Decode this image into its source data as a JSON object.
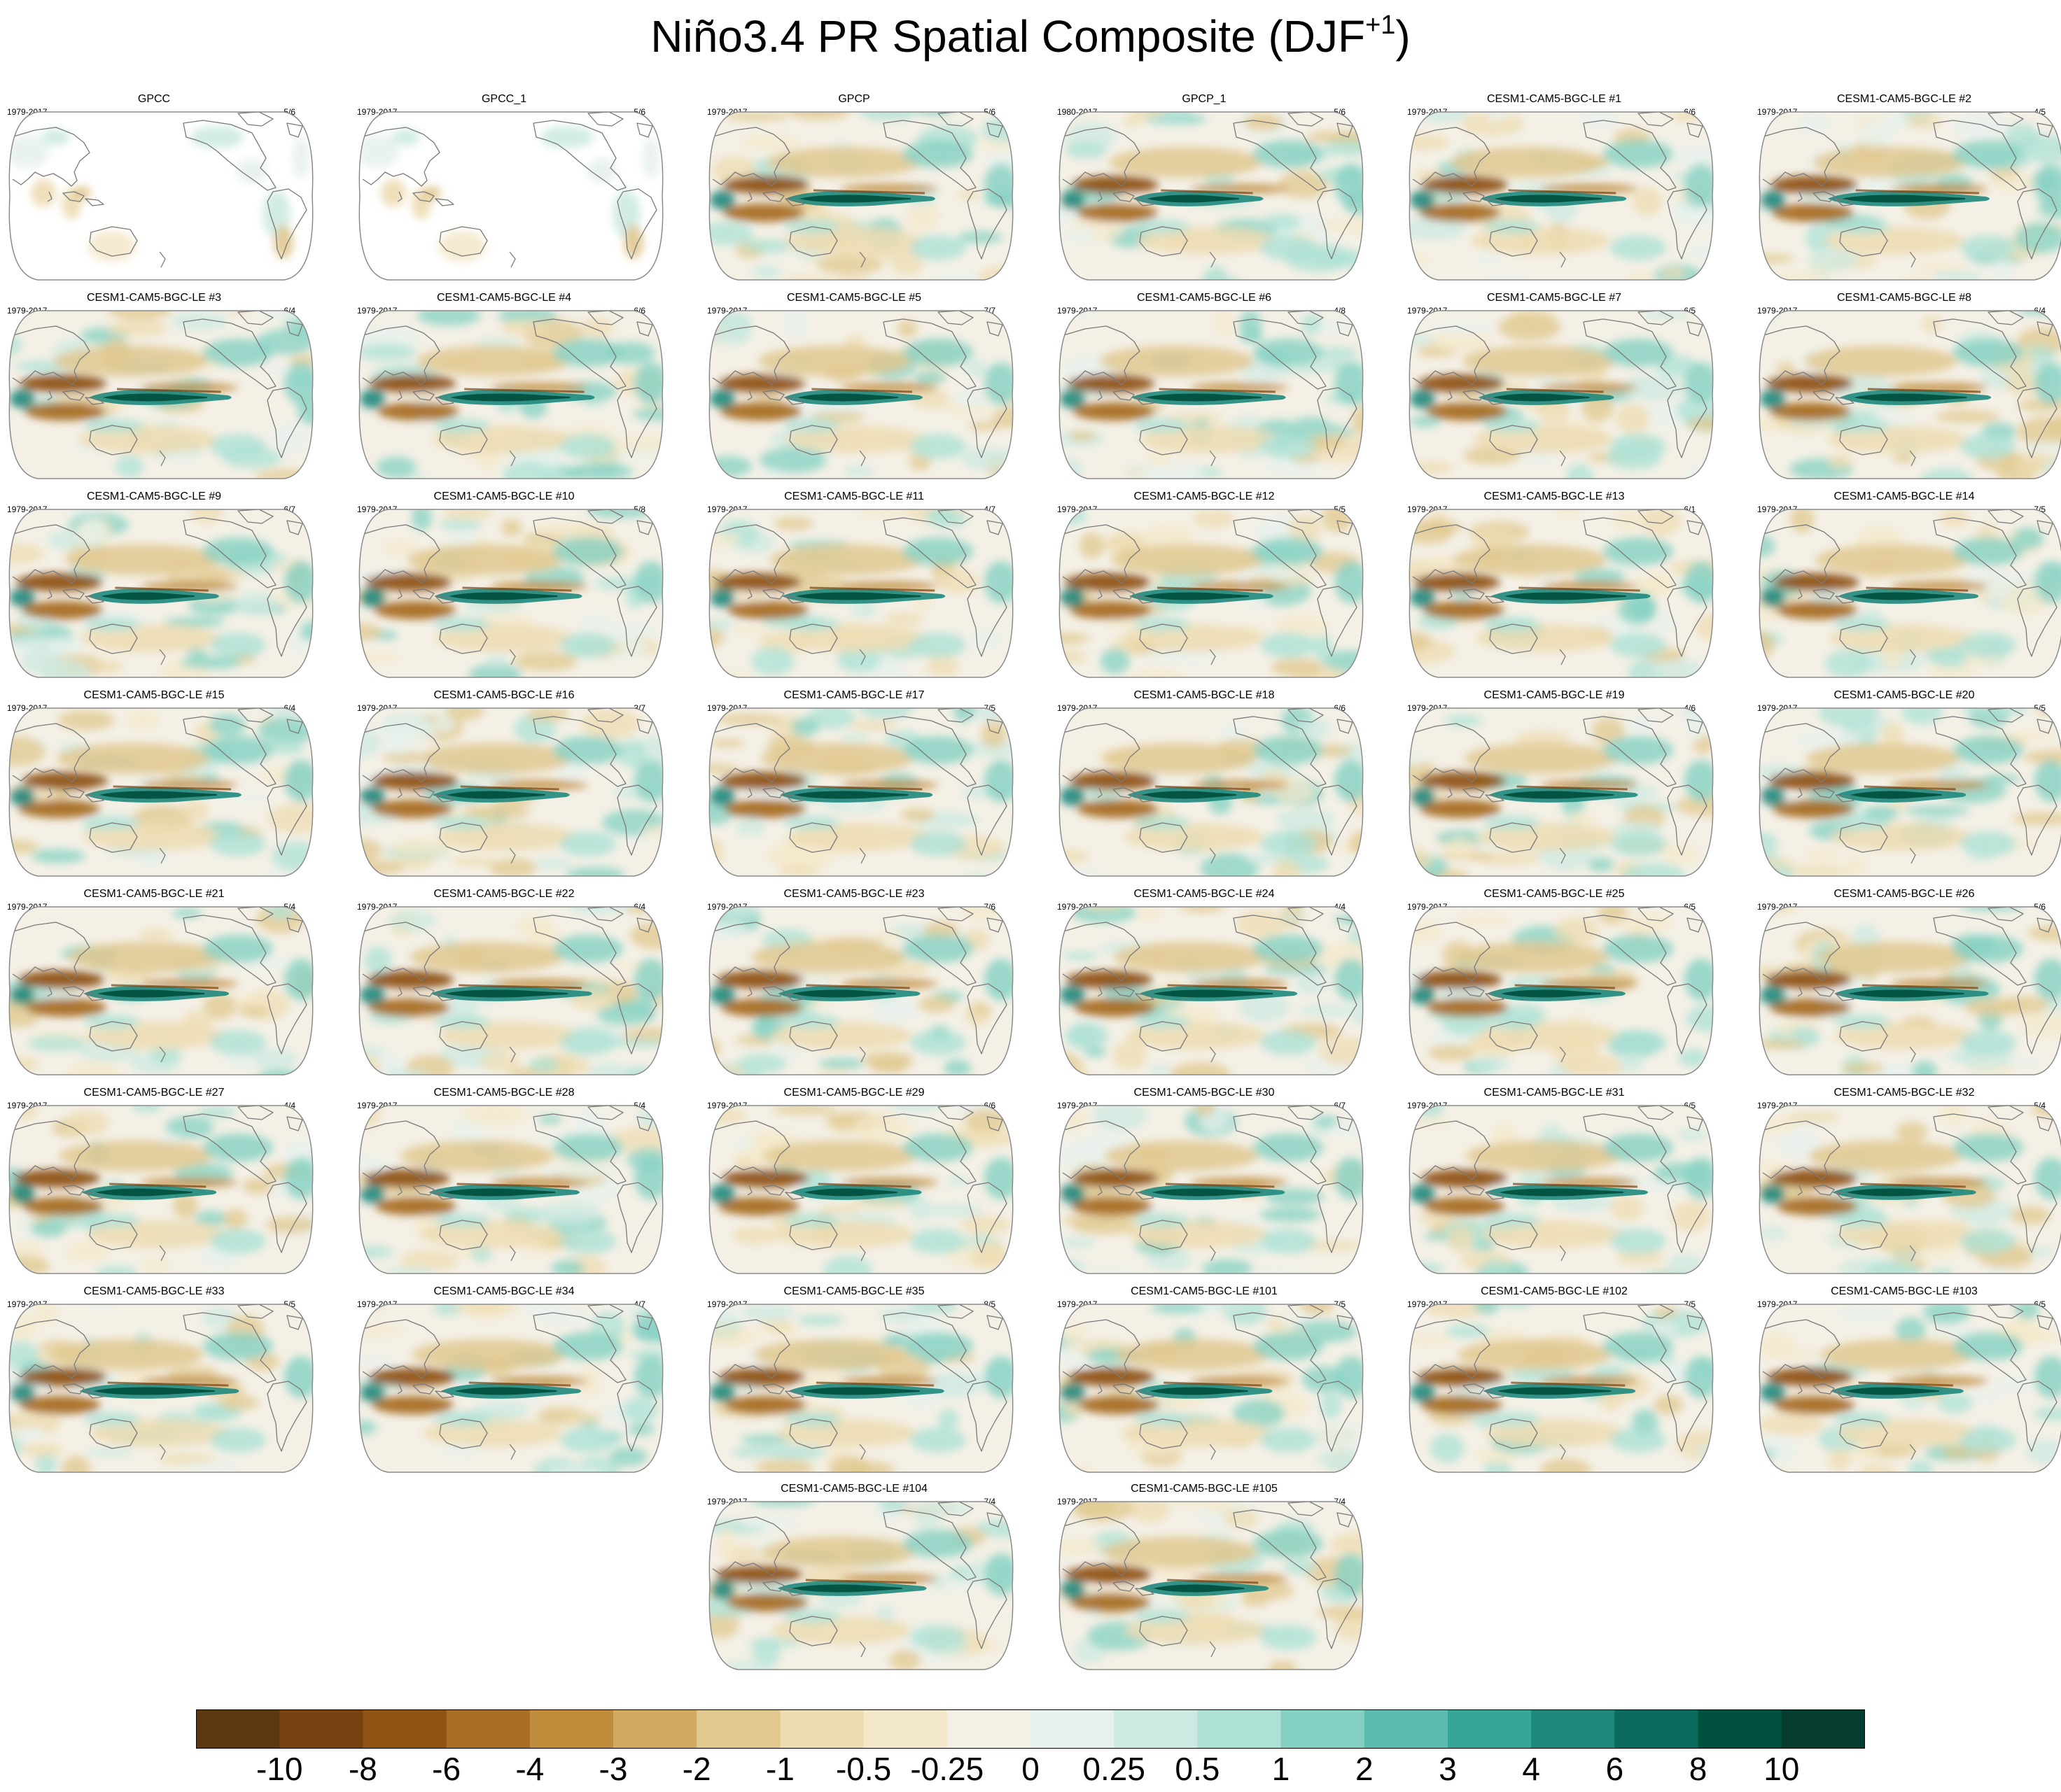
{
  "title": {
    "main": "Niño3.4 PR Spatial Composite (DJF",
    "superscript": "+1",
    "close": ")"
  },
  "colors": {
    "palette": [
      "#5c3710",
      "#784210",
      "#8f5313",
      "#a86e23",
      "#bf8c3c",
      "#d2aa62",
      "#e0c88f",
      "#eddcb2",
      "#f4e8cb",
      "#f4f0e6",
      "#e7f1ed",
      "#cdeae2",
      "#ade1d6",
      "#84d1c3",
      "#5cbcad",
      "#35a597",
      "#1f887d",
      "#0b6a5e",
      "#02513f",
      "#043d2f"
    ],
    "land_outline": "#7a7a7a",
    "map_border": "#8a8a8a"
  },
  "chart_data": {
    "type": "heatmap",
    "title": "Niño3.4 PR Spatial Composite (DJF+1)",
    "projection": "Robinson (Pacific-centered)",
    "season": "DJF+1",
    "colorbar": {
      "levels": [
        "-10",
        "-8",
        "-6",
        "-4",
        "-3",
        "-2",
        "-1",
        "-0.5",
        "-0.25",
        "0",
        "0.25",
        "0.5",
        "1",
        "2",
        "3",
        "4",
        "6",
        "8",
        "10"
      ]
    },
    "panels": [
      {
        "name": "GPCC",
        "years": "1979-2017",
        "count": "5/6",
        "type": "obs-land"
      },
      {
        "name": "GPCC_1",
        "years": "1979-2017",
        "count": "5/6",
        "type": "obs-land"
      },
      {
        "name": "GPCP",
        "years": "1979-2017",
        "count": "5/6",
        "type": "obs"
      },
      {
        "name": "GPCP_1",
        "years": "1980-2017",
        "count": "5/6",
        "type": "obs"
      },
      {
        "name": "CESM1-CAM5-BGC-LE #1",
        "years": "1979-2017",
        "count": "6/6",
        "type": "model"
      },
      {
        "name": "CESM1-CAM5-BGC-LE #2",
        "years": "1979-2017",
        "count": "4/5",
        "type": "model"
      },
      {
        "name": "CESM1-CAM5-BGC-LE #3",
        "years": "1979-2017",
        "count": "6/4",
        "type": "model"
      },
      {
        "name": "CESM1-CAM5-BGC-LE #4",
        "years": "1979-2017",
        "count": "6/6",
        "type": "model"
      },
      {
        "name": "CESM1-CAM5-BGC-LE #5",
        "years": "1979-2017",
        "count": "7/7",
        "type": "model"
      },
      {
        "name": "CESM1-CAM5-BGC-LE #6",
        "years": "1979-2017",
        "count": "4/8",
        "type": "model"
      },
      {
        "name": "CESM1-CAM5-BGC-LE #7",
        "years": "1979-2017",
        "count": "6/5",
        "type": "model"
      },
      {
        "name": "CESM1-CAM5-BGC-LE #8",
        "years": "1979-2017",
        "count": "6/4",
        "type": "model"
      },
      {
        "name": "CESM1-CAM5-BGC-LE #9",
        "years": "1979-2017",
        "count": "6/7",
        "type": "model"
      },
      {
        "name": "CESM1-CAM5-BGC-LE #10",
        "years": "1979-2017",
        "count": "5/8",
        "type": "model"
      },
      {
        "name": "CESM1-CAM5-BGC-LE #11",
        "years": "1979-2017",
        "count": "4/7",
        "type": "model"
      },
      {
        "name": "CESM1-CAM5-BGC-LE #12",
        "years": "1979-2017",
        "count": "5/5",
        "type": "model"
      },
      {
        "name": "CESM1-CAM5-BGC-LE #13",
        "years": "1979-2017",
        "count": "6/1",
        "type": "model"
      },
      {
        "name": "CESM1-CAM5-BGC-LE #14",
        "years": "1979-2017",
        "count": "7/5",
        "type": "model"
      },
      {
        "name": "CESM1-CAM5-BGC-LE #15",
        "years": "1979-2017",
        "count": "6/4",
        "type": "model"
      },
      {
        "name": "CESM1-CAM5-BGC-LE #16",
        "years": "1979-2017",
        "count": "3/7",
        "type": "model"
      },
      {
        "name": "CESM1-CAM5-BGC-LE #17",
        "years": "1979-2017",
        "count": "7/5",
        "type": "model"
      },
      {
        "name": "CESM1-CAM5-BGC-LE #18",
        "years": "1979-2017",
        "count": "6/6",
        "type": "model"
      },
      {
        "name": "CESM1-CAM5-BGC-LE #19",
        "years": "1979-2017",
        "count": "4/6",
        "type": "model"
      },
      {
        "name": "CESM1-CAM5-BGC-LE #20",
        "years": "1979-2017",
        "count": "5/5",
        "type": "model"
      },
      {
        "name": "CESM1-CAM5-BGC-LE #21",
        "years": "1979-2017",
        "count": "5/4",
        "type": "model"
      },
      {
        "name": "CESM1-CAM5-BGC-LE #22",
        "years": "1979-2017",
        "count": "6/4",
        "type": "model"
      },
      {
        "name": "CESM1-CAM5-BGC-LE #23",
        "years": "1979-2017",
        "count": "7/6",
        "type": "model"
      },
      {
        "name": "CESM1-CAM5-BGC-LE #24",
        "years": "1979-2017",
        "count": "4/4",
        "type": "model"
      },
      {
        "name": "CESM1-CAM5-BGC-LE #25",
        "years": "1979-2017",
        "count": "6/5",
        "type": "model"
      },
      {
        "name": "CESM1-CAM5-BGC-LE #26",
        "years": "1979-2017",
        "count": "5/6",
        "type": "model"
      },
      {
        "name": "CESM1-CAM5-BGC-LE #27",
        "years": "1979-2017",
        "count": "4/4",
        "type": "model"
      },
      {
        "name": "CESM1-CAM5-BGC-LE #28",
        "years": "1979-2017",
        "count": "5/4",
        "type": "model"
      },
      {
        "name": "CESM1-CAM5-BGC-LE #29",
        "years": "1979-2017",
        "count": "6/6",
        "type": "model"
      },
      {
        "name": "CESM1-CAM5-BGC-LE #30",
        "years": "1979-2017",
        "count": "6/7",
        "type": "model"
      },
      {
        "name": "CESM1-CAM5-BGC-LE #31",
        "years": "1979-2017",
        "count": "6/5",
        "type": "model"
      },
      {
        "name": "CESM1-CAM5-BGC-LE #32",
        "years": "1979-2017",
        "count": "5/4",
        "type": "model"
      },
      {
        "name": "CESM1-CAM5-BGC-LE #33",
        "years": "1979-2017",
        "count": "5/5",
        "type": "model"
      },
      {
        "name": "CESM1-CAM5-BGC-LE #34",
        "years": "1979-2017",
        "count": "4/7",
        "type": "model"
      },
      {
        "name": "CESM1-CAM5-BGC-LE #35",
        "years": "1979-2017",
        "count": "8/5",
        "type": "model"
      },
      {
        "name": "CESM1-CAM5-BGC-LE #101",
        "years": "1979-2017",
        "count": "7/5",
        "type": "model"
      },
      {
        "name": "CESM1-CAM5-BGC-LE #102",
        "years": "1979-2017",
        "count": "7/5",
        "type": "model"
      },
      {
        "name": "CESM1-CAM5-BGC-LE #103",
        "years": "1979-2017",
        "count": "6/5",
        "type": "model"
      },
      {
        "name": "CESM1-CAM5-BGC-LE #104",
        "years": "1979-2017",
        "count": "7/4",
        "type": "model"
      },
      {
        "name": "CESM1-CAM5-BGC-LE #105",
        "years": "1979-2017",
        "count": "7/4",
        "type": "model"
      }
    ]
  }
}
